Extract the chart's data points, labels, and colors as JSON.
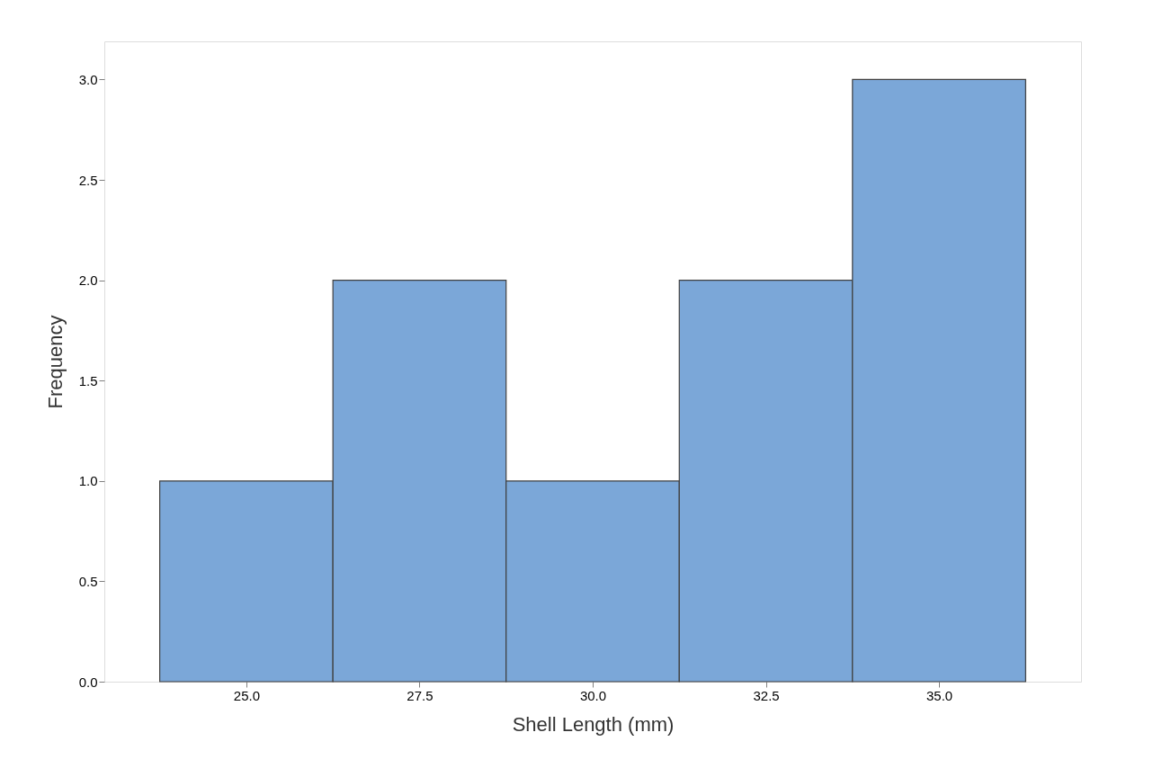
{
  "chart_data": {
    "type": "histogram",
    "xlabel": "Shell Length (mm)",
    "ylabel": "Frequency",
    "bins": [
      23.75,
      26.25,
      28.75,
      31.25,
      33.75,
      36.25
    ],
    "values": [
      1,
      2,
      1,
      2,
      3
    ],
    "color": "#7ba7d8",
    "xlim": [
      22.95,
      37.05
    ],
    "xticks": [
      {
        "value": 25,
        "label": "25.0"
      },
      {
        "value": 27.5,
        "label": "27.5"
      },
      {
        "value": 30,
        "label": "30.0"
      },
      {
        "value": 32.5,
        "label": "32.5"
      },
      {
        "value": 35,
        "label": "35.0"
      }
    ],
    "ylim": [
      0,
      3.19
    ],
    "yticks": [
      {
        "value": 0,
        "label": "0.0"
      },
      {
        "value": 0.5,
        "label": "0.5"
      },
      {
        "value": 1,
        "label": "1.0"
      },
      {
        "value": 1.5,
        "label": "1.5"
      },
      {
        "value": 2,
        "label": "2.0"
      },
      {
        "value": 2.5,
        "label": "2.5"
      },
      {
        "value": 3,
        "label": "3.0"
      }
    ],
    "grid": false
  }
}
